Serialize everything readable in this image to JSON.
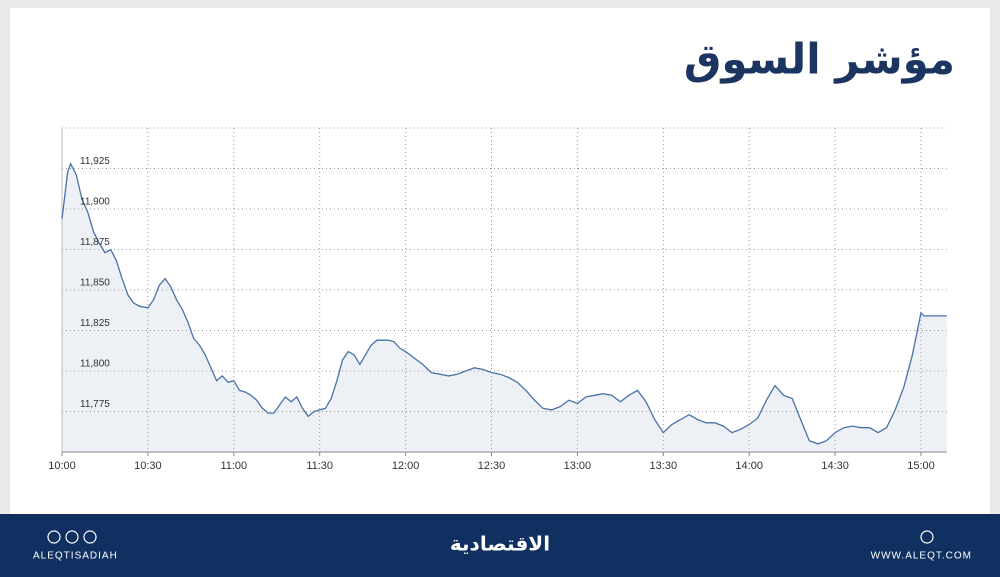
{
  "chart_data": {
    "type": "line",
    "title": "مؤشر السوق",
    "x": [
      "10:00",
      "10:02",
      "10:03",
      "10:05",
      "10:07",
      "10:09",
      "10:11",
      "10:13",
      "10:15",
      "10:17",
      "10:19",
      "10:21",
      "10:23",
      "10:25",
      "10:27",
      "10:30",
      "10:32",
      "10:34",
      "10:36",
      "10:38",
      "10:40",
      "10:42",
      "10:44",
      "10:46",
      "10:48",
      "10:50",
      "10:52",
      "10:54",
      "10:56",
      "10:58",
      "11:00",
      "11:02",
      "11:04",
      "11:06",
      "11:08",
      "11:10",
      "11:12",
      "11:14",
      "11:16",
      "11:18",
      "11:20",
      "11:22",
      "11:24",
      "11:26",
      "11:28",
      "11:30",
      "11:32",
      "11:34",
      "11:36",
      "11:38",
      "11:40",
      "11:42",
      "11:44",
      "11:46",
      "11:48",
      "11:50",
      "11:52",
      "11:54",
      "11:56",
      "11:58",
      "12:00",
      "12:03",
      "12:06",
      "12:09",
      "12:12",
      "12:15",
      "12:18",
      "12:21",
      "12:24",
      "12:27",
      "12:30",
      "12:33",
      "12:36",
      "12:39",
      "12:42",
      "12:45",
      "12:48",
      "12:51",
      "12:54",
      "12:57",
      "13:00",
      "13:03",
      "13:06",
      "13:09",
      "13:12",
      "13:15",
      "13:18",
      "13:21",
      "13:24",
      "13:27",
      "13:30",
      "13:33",
      "13:36",
      "13:39",
      "13:42",
      "13:45",
      "13:48",
      "13:51",
      "13:54",
      "13:57",
      "14:00",
      "14:03",
      "14:06",
      "14:09",
      "14:12",
      "14:15",
      "14:18",
      "14:21",
      "14:24",
      "14:27",
      "14:30",
      "14:33",
      "14:36",
      "14:39",
      "14:42",
      "14:45",
      "14:48",
      "14:51",
      "14:54",
      "14:57",
      "15:00",
      "15:01",
      "15:09"
    ],
    "values": [
      11894,
      11923,
      11928,
      11921,
      11906,
      11898,
      11886,
      11879,
      11873,
      11875,
      11868,
      11857,
      11847,
      11842,
      11840,
      11839,
      11844,
      11853,
      11857,
      11852,
      11844,
      11838,
      11830,
      11820,
      11816,
      11810,
      11802,
      11794,
      11797,
      11793,
      11794,
      11788,
      11787,
      11785,
      11782,
      11777,
      11774,
      11774,
      11779,
      11784,
      11781,
      11784,
      11777,
      11772,
      11775,
      11776,
      11777,
      11783,
      11794,
      11807,
      11812,
      11810,
      11804,
      11810,
      11816,
      11819,
      11819,
      11819,
      11818,
      11814,
      11812,
      11808,
      11804,
      11799,
      11798,
      11797,
      11798,
      11800,
      11802,
      11801,
      11799,
      11798,
      11796,
      11793,
      11788,
      11782,
      11777,
      11776,
      11778,
      11782,
      11780,
      11784,
      11785,
      11786,
      11785,
      11781,
      11785,
      11788,
      11781,
      11770,
      11762,
      11767,
      11770,
      11773,
      11770,
      11768,
      11768,
      11766,
      11762,
      11764,
      11767,
      11771,
      11782,
      11791,
      11785,
      11783,
      11770,
      11757,
      11755,
      11757,
      11762,
      11765,
      11766,
      11765,
      11765,
      11762,
      11765,
      11776,
      11790,
      11810,
      11836,
      11834,
      11834
    ],
    "color": "#4a72a8",
    "xlim": [
      "10:00",
      "15:09"
    ],
    "xticks": [
      "10:00",
      "10:30",
      "11:00",
      "11:30",
      "12:00",
      "12:30",
      "13:00",
      "13:30",
      "14:00",
      "14:30",
      "15:00"
    ],
    "ylim": [
      11750,
      11950
    ],
    "yticks": [
      {
        "value": 11775,
        "label": "11,775"
      },
      {
        "value": 11800,
        "label": "11,800"
      },
      {
        "value": 11825,
        "label": "11,825"
      },
      {
        "value": 11850,
        "label": "11,850"
      },
      {
        "value": 11875,
        "label": "11,875"
      },
      {
        "value": 11900,
        "label": "11,900"
      },
      {
        "value": 11925,
        "label": "11,925"
      }
    ],
    "grid": true
  },
  "footer": {
    "left": "ALEQTISADIAH",
    "logo": "الاقتصادية",
    "right": "WWW.ALEQT.COM"
  }
}
